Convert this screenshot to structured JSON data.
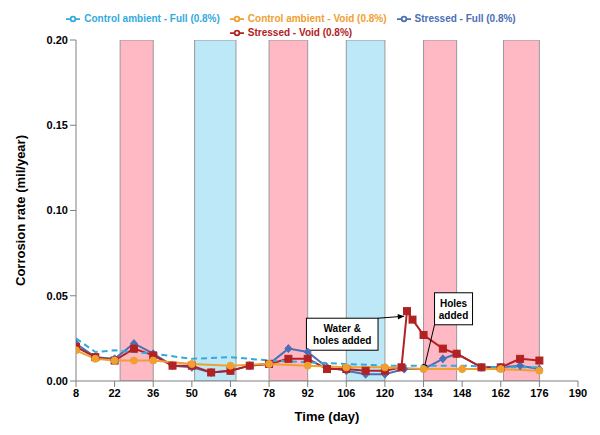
{
  "chart_data": {
    "type": "line",
    "x_label": "Time (day)",
    "y_label": "Corrosion rate (mil/year)",
    "xlim": [
      8,
      190
    ],
    "xticks": [
      8,
      22,
      36,
      50,
      64,
      78,
      92,
      106,
      120,
      134,
      148,
      162,
      176,
      190
    ],
    "ylim": [
      0,
      0.2
    ],
    "yticks": [
      {
        "value": 0,
        "label": "0.00"
      },
      {
        "value": 0.05,
        "label": "0.05"
      },
      {
        "value": 0.1,
        "label": "0.10"
      },
      {
        "value": 0.15,
        "label": "0.15"
      },
      {
        "value": 0.2,
        "label": "0.20"
      }
    ],
    "grid": false,
    "legend": "top",
    "series": [
      {
        "name": "Stressed - Full (0.8%)",
        "color": "#4a6fb5",
        "marker": "diamond",
        "line_style": "solid",
        "x": [
          8,
          15,
          22,
          29,
          36,
          43,
          50,
          57,
          64,
          71,
          78,
          85,
          92,
          99,
          106,
          113,
          120,
          127,
          134,
          141,
          146,
          155,
          162,
          169,
          176
        ],
        "values": [
          0.022,
          0.014,
          0.013,
          0.022,
          0.016,
          0.009,
          0.008,
          0.005,
          0.006,
          0.009,
          0.01,
          0.019,
          0.017,
          0.008,
          0.006,
          0.004,
          0.004,
          0.007,
          0.007,
          0.013,
          0.016,
          0.008,
          0.008,
          0.009,
          0.007
        ]
      },
      {
        "name": "Stressed - Void (0.8%)",
        "color": "#b22222",
        "marker": "square",
        "line_style": "solid",
        "x": [
          8,
          15,
          22,
          29,
          36,
          43,
          50,
          57,
          64,
          71,
          78,
          85,
          92,
          99,
          106,
          113,
          120,
          126,
          128,
          130,
          134,
          141,
          146,
          155,
          162,
          169,
          176
        ],
        "values": [
          0.02,
          0.014,
          0.012,
          0.019,
          0.015,
          0.009,
          0.009,
          0.005,
          0.006,
          0.009,
          0.01,
          0.013,
          0.013,
          0.007,
          0.007,
          0.006,
          0.006,
          0.008,
          0.041,
          0.036,
          0.027,
          0.019,
          0.016,
          0.008,
          0.008,
          0.013,
          0.012
        ]
      },
      {
        "name": "Control ambient - Full (0.8%)",
        "color": "#33aadd",
        "marker": "none",
        "line_style": "dashed",
        "x": [
          8,
          15,
          22,
          29,
          36,
          50,
          64,
          78,
          92,
          106,
          120,
          134,
          148,
          162,
          176
        ],
        "values": [
          0.025,
          0.017,
          0.018,
          0.017,
          0.016,
          0.013,
          0.014,
          0.012,
          0.011,
          0.01,
          0.009,
          0.009,
          0.009,
          0.008,
          0.008
        ]
      },
      {
        "name": "Control ambient - Void (0.8%)",
        "color": "#f0a030",
        "marker": "circle",
        "line_style": "solid",
        "x": [
          8,
          15,
          22,
          29,
          36,
          50,
          64,
          78,
          92,
          106,
          120,
          134,
          148,
          162,
          176
        ],
        "values": [
          0.018,
          0.013,
          0.012,
          0.012,
          0.012,
          0.01,
          0.009,
          0.01,
          0.009,
          0.008,
          0.008,
          0.007,
          0.007,
          0.007,
          0.006
        ]
      }
    ],
    "shaded_regions": [
      {
        "start": 24,
        "end": 36,
        "color": "#ffb9c4"
      },
      {
        "start": 51,
        "end": 66,
        "color": "#bde8f7"
      },
      {
        "start": 78,
        "end": 92,
        "color": "#ffb9c4"
      },
      {
        "start": 106,
        "end": 120,
        "color": "#bde8f7"
      },
      {
        "start": 134,
        "end": 146,
        "color": "#ffb9c4"
      },
      {
        "start": 163,
        "end": 176,
        "color": "#ffb9c4"
      }
    ],
    "annotations": [
      {
        "text": "Water & holes added",
        "x": 127,
        "y": 0.038
      },
      {
        "text": "Holes added",
        "x": 134,
        "y": 0.006
      }
    ]
  }
}
